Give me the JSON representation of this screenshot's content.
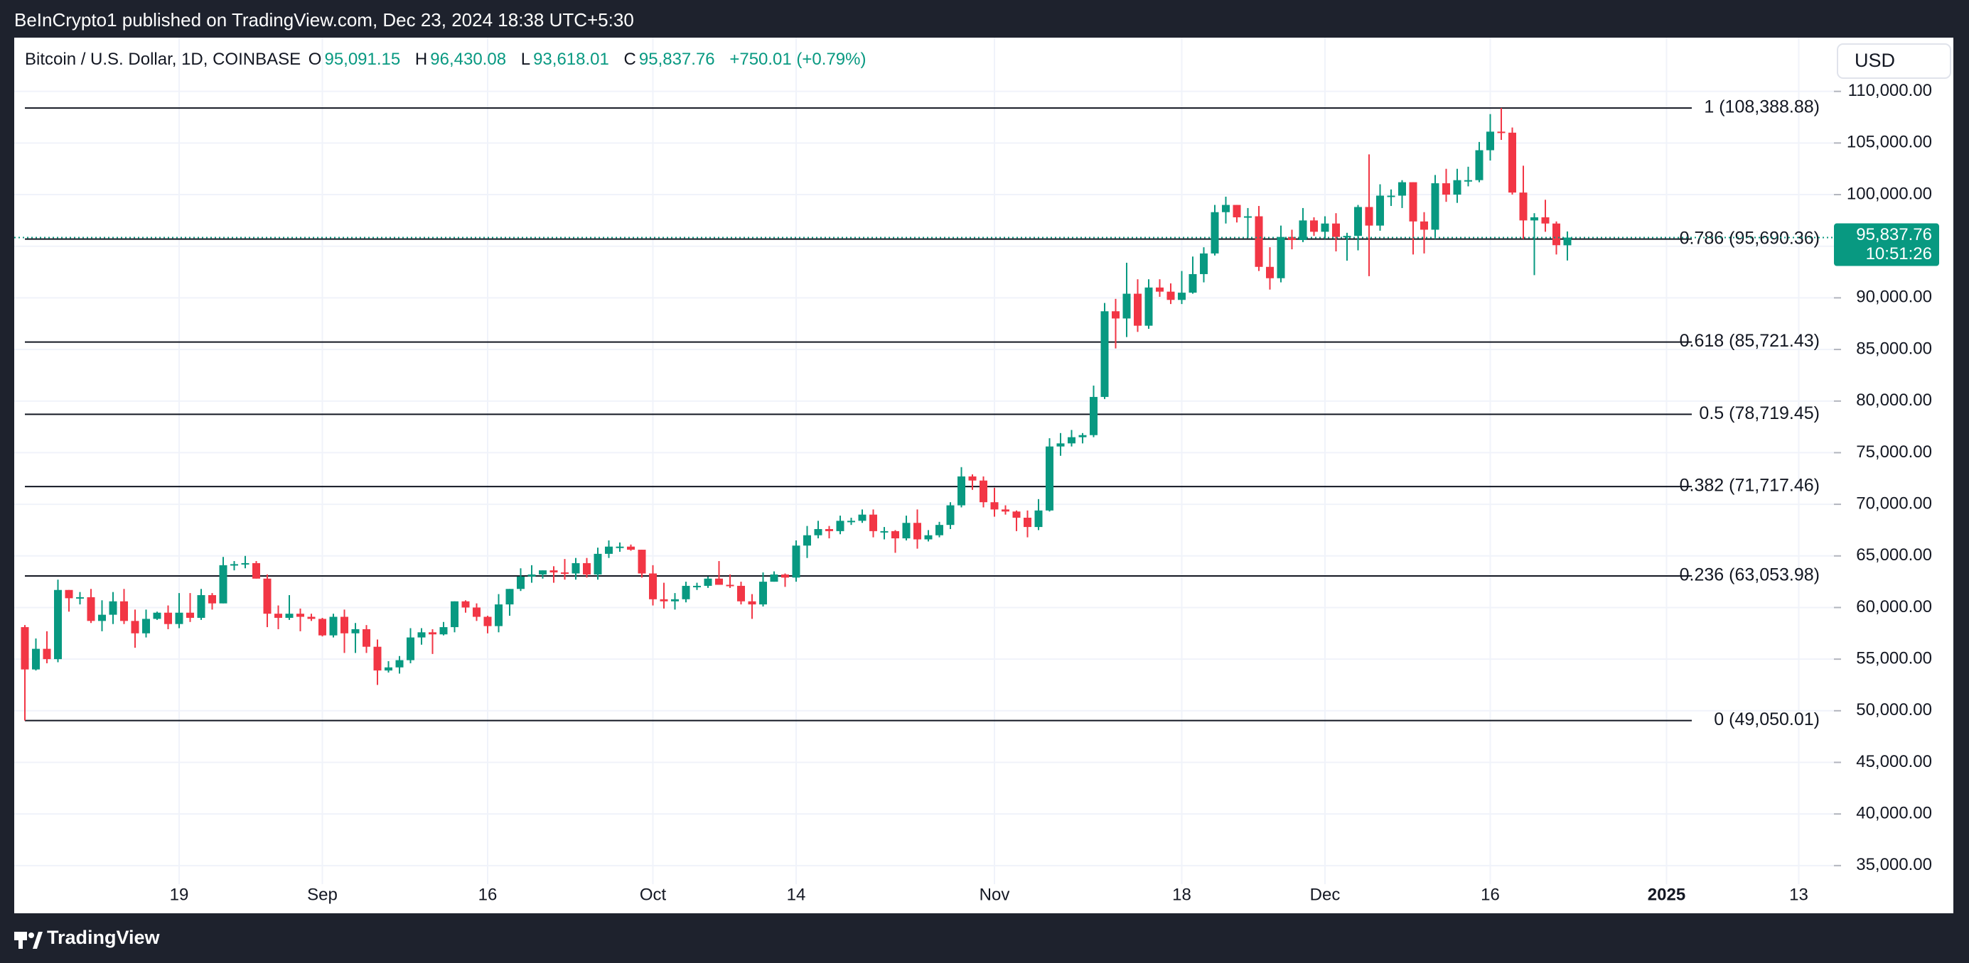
{
  "header": {
    "published": "BeInCrypto1 published on TradingView.com, Dec 23, 2024 18:38 UTC+5:30",
    "symbol": "Bitcoin / U.S. Dollar, 1D, COINBASE",
    "ohlc": [
      {
        "key": "O",
        "value": "95,091.15"
      },
      {
        "key": "H",
        "value": "96,430.08"
      },
      {
        "key": "L",
        "value": "93,618.01"
      },
      {
        "key": "C",
        "value": "95,837.76"
      }
    ],
    "change": "+750.01 (+0.79%)"
  },
  "currency": "USD",
  "footer": {
    "brand": "TradingView"
  },
  "chart_data": {
    "type": "candlestick",
    "up_color": "#089981",
    "down_color": "#f23645",
    "grid": true,
    "price_label": "95,837.76",
    "countdown": "10:51:26",
    "ylim": [
      33200,
      115000
    ],
    "yticks": [
      {
        "value": 35000,
        "label": "35,000.00"
      },
      {
        "value": 40000,
        "label": "40,000.00"
      },
      {
        "value": 45000,
        "label": "45,000.00"
      },
      {
        "value": 50000,
        "label": "50,000.00"
      },
      {
        "value": 55000,
        "label": "55,000.00"
      },
      {
        "value": 60000,
        "label": "60,000.00"
      },
      {
        "value": 65000,
        "label": "65,000.00"
      },
      {
        "value": 70000,
        "label": "70,000.00"
      },
      {
        "value": 75000,
        "label": "75,000.00"
      },
      {
        "value": 80000,
        "label": "80,000.00"
      },
      {
        "value": 85000,
        "label": "85,000.00"
      },
      {
        "value": 90000,
        "label": "90,000.00"
      },
      {
        "value": 95000,
        "label": "95,000.00"
      },
      {
        "value": 100000,
        "label": "100,000.00"
      },
      {
        "value": 105000,
        "label": "105,000.00"
      },
      {
        "value": 110000,
        "label": "110,000.00"
      }
    ],
    "fib_levels": [
      {
        "value": 108388.88,
        "label": "1 (108,388.88)"
      },
      {
        "value": 95690.36,
        "label": "0.786 (95,690.36)"
      },
      {
        "value": 85721.43,
        "label": "0.618 (85,721.43)"
      },
      {
        "value": 78719.45,
        "label": "0.5 (78,719.45)"
      },
      {
        "value": 71717.46,
        "label": "0.382 (71,717.46)"
      },
      {
        "value": 63053.98,
        "label": "0.236 (63,053.98)"
      },
      {
        "value": 49050.01,
        "label": "0 (49,050.01)"
      }
    ],
    "categories": [
      null,
      null,
      null,
      null,
      null,
      null,
      null,
      null,
      null,
      null,
      null,
      null,
      null,
      null,
      "19",
      null,
      null,
      null,
      null,
      null,
      null,
      null,
      null,
      null,
      null,
      null,
      null,
      "Sep",
      null,
      null,
      null,
      null,
      null,
      null,
      null,
      null,
      null,
      null,
      null,
      null,
      null,
      null,
      "16",
      null,
      null,
      null,
      null,
      null,
      null,
      null,
      null,
      null,
      null,
      null,
      null,
      null,
      null,
      "Oct",
      null,
      null,
      null,
      null,
      null,
      null,
      null,
      null,
      null,
      null,
      null,
      null,
      "14",
      null,
      null,
      null,
      null,
      null,
      null,
      null,
      null,
      null,
      null,
      null,
      null,
      null,
      null,
      null,
      null,
      null,
      "Nov",
      null,
      null,
      null,
      null,
      null,
      null,
      null,
      null,
      null,
      null,
      null,
      null,
      null,
      null,
      null,
      null,
      "18",
      null,
      null,
      null,
      null,
      null,
      null,
      null,
      null,
      null,
      null,
      null,
      null,
      "Dec",
      null,
      null,
      null,
      null,
      null,
      null,
      null,
      null,
      null,
      null,
      null,
      null,
      null,
      null,
      "16",
      null,
      null,
      null,
      null,
      null,
      null,
      null,
      null,
      null,
      null,
      null,
      null,
      null,
      null,
      null,
      "2025",
      null,
      null,
      null,
      null,
      null,
      null,
      null,
      null,
      null,
      null,
      null,
      "13",
      null,
      null
    ],
    "candles": [
      [
        58100,
        58300,
        49050,
        54000
      ],
      [
        54000,
        57000,
        53900,
        56000
      ],
      [
        56000,
        57700,
        54600,
        55000
      ],
      [
        55000,
        62700,
        54700,
        61700
      ],
      [
        61700,
        61700,
        59600,
        60900
      ],
      [
        60900,
        61500,
        60300,
        61000
      ],
      [
        61000,
        61800,
        58500,
        58700
      ],
      [
        58700,
        60700,
        57700,
        59300
      ],
      [
        59300,
        61500,
        58400,
        60600
      ],
      [
        60600,
        61800,
        58400,
        58700
      ],
      [
        58700,
        59800,
        56100,
        57500
      ],
      [
        57500,
        59800,
        57100,
        58900
      ],
      [
        58900,
        59600,
        58800,
        59500
      ],
      [
        59500,
        60200,
        57900,
        58400
      ],
      [
        58400,
        61400,
        58000,
        59500
      ],
      [
        59500,
        61400,
        58600,
        59000
      ],
      [
        59000,
        61800,
        58800,
        61200
      ],
      [
        61200,
        61400,
        59800,
        60400
      ],
      [
        60400,
        64900,
        60400,
        64100
      ],
      [
        64100,
        64500,
        63600,
        64200
      ],
      [
        64200,
        65000,
        63800,
        64300
      ],
      [
        64300,
        64500,
        62800,
        62800
      ],
      [
        62800,
        63200,
        58100,
        59400
      ],
      [
        59400,
        60200,
        57900,
        59000
      ],
      [
        59000,
        61200,
        58800,
        59400
      ],
      [
        59400,
        59900,
        57700,
        59100
      ],
      [
        59100,
        59400,
        58700,
        58900
      ],
      [
        58900,
        59000,
        57200,
        57300
      ],
      [
        57300,
        59400,
        57100,
        59100
      ],
      [
        59100,
        59800,
        55600,
        57500
      ],
      [
        57500,
        58500,
        55600,
        57900
      ],
      [
        57900,
        58300,
        55600,
        56200
      ],
      [
        56200,
        56900,
        52500,
        53900
      ],
      [
        53900,
        54800,
        53700,
        54200
      ],
      [
        54200,
        55300,
        53600,
        54900
      ],
      [
        54900,
        58000,
        54600,
        57100
      ],
      [
        57100,
        58000,
        56400,
        57600
      ],
      [
        57600,
        57900,
        55500,
        57400
      ],
      [
        57400,
        58600,
        57300,
        58100
      ],
      [
        58100,
        60600,
        57600,
        60600
      ],
      [
        60600,
        60700,
        59500,
        60000
      ],
      [
        60000,
        60400,
        58700,
        59100
      ],
      [
        59100,
        59200,
        57500,
        58200
      ],
      [
        58200,
        61300,
        57600,
        60300
      ],
      [
        60300,
        61800,
        59200,
        61800
      ],
      [
        61800,
        63800,
        61600,
        63000
      ],
      [
        63000,
        64100,
        62400,
        63200
      ],
      [
        63200,
        63600,
        62800,
        63600
      ],
      [
        63600,
        64000,
        62400,
        63400
      ],
      [
        63400,
        64700,
        62700,
        63300
      ],
      [
        63300,
        64800,
        62700,
        64300
      ],
      [
        64300,
        64800,
        62900,
        63200
      ],
      [
        63200,
        65800,
        62700,
        65200
      ],
      [
        65200,
        66500,
        64800,
        65900
      ],
      [
        65900,
        66300,
        65400,
        65900
      ],
      [
        65900,
        66100,
        65500,
        65600
      ],
      [
        65600,
        65600,
        62900,
        63300
      ],
      [
        63300,
        64100,
        60200,
        60800
      ],
      [
        60800,
        62400,
        59900,
        60600
      ],
      [
        60600,
        61400,
        59800,
        60800
      ],
      [
        60800,
        62500,
        60500,
        62100
      ],
      [
        62100,
        62400,
        61700,
        62100
      ],
      [
        62100,
        63000,
        61900,
        62800
      ],
      [
        62800,
        64500,
        62200,
        62200
      ],
      [
        62200,
        63200,
        61900,
        62100
      ],
      [
        62100,
        62500,
        60300,
        60600
      ],
      [
        60600,
        61300,
        58900,
        60300
      ],
      [
        60300,
        63400,
        60100,
        62500
      ],
      [
        62500,
        63500,
        62500,
        63200
      ],
      [
        63200,
        63300,
        62000,
        62900
      ],
      [
        62900,
        66500,
        62500,
        66000
      ],
      [
        66000,
        67900,
        64800,
        67000
      ],
      [
        67000,
        68400,
        66700,
        67600
      ],
      [
        67600,
        67900,
        66700,
        67400
      ],
      [
        67400,
        68900,
        67100,
        68400
      ],
      [
        68400,
        68700,
        68000,
        68400
      ],
      [
        68400,
        69500,
        68200,
        69000
      ],
      [
        69000,
        69500,
        66800,
        67400
      ],
      [
        67400,
        67800,
        66600,
        67400
      ],
      [
        67400,
        67500,
        65300,
        66700
      ],
      [
        66700,
        68900,
        66500,
        68200
      ],
      [
        68200,
        69500,
        65700,
        66600
      ],
      [
        66600,
        67500,
        66400,
        67000
      ],
      [
        67000,
        68300,
        66800,
        68000
      ],
      [
        68000,
        70200,
        67600,
        69900
      ],
      [
        69900,
        73600,
        69700,
        72700
      ],
      [
        72700,
        72900,
        71400,
        72300
      ],
      [
        72300,
        72700,
        69700,
        70200
      ],
      [
        70200,
        71600,
        68800,
        69500
      ],
      [
        69500,
        69900,
        69000,
        69300
      ],
      [
        69300,
        69400,
        67400,
        68700
      ],
      [
        68700,
        69400,
        66800,
        67800
      ],
      [
        67800,
        70500,
        67500,
        69400
      ],
      [
        69400,
        76400,
        69300,
        75600
      ],
      [
        75600,
        76900,
        74700,
        75900
      ],
      [
        75900,
        77200,
        75600,
        76500
      ],
      [
        76500,
        76900,
        75900,
        76700
      ],
      [
        76700,
        81500,
        76500,
        80400
      ],
      [
        80400,
        89500,
        80200,
        88700
      ],
      [
        88700,
        89900,
        85100,
        88000
      ],
      [
        88000,
        93400,
        86200,
        90400
      ],
      [
        90400,
        91800,
        86700,
        87300
      ],
      [
        87300,
        91800,
        87000,
        91000
      ],
      [
        91000,
        91800,
        90100,
        90600
      ],
      [
        90600,
        91400,
        89400,
        89800
      ],
      [
        89800,
        92600,
        89400,
        90500
      ],
      [
        90500,
        94000,
        90400,
        92300
      ],
      [
        92300,
        94900,
        91500,
        94300
      ],
      [
        94300,
        99000,
        94100,
        98300
      ],
      [
        98300,
        99800,
        97200,
        99000
      ],
      [
        99000,
        99000,
        97300,
        97800
      ],
      [
        97800,
        98700,
        95800,
        97900
      ],
      [
        97900,
        98900,
        92600,
        93000
      ],
      [
        93000,
        94900,
        90800,
        91900
      ],
      [
        91900,
        97000,
        91500,
        95900
      ],
      [
        95900,
        96600,
        94700,
        95600
      ],
      [
        95600,
        98700,
        95400,
        97500
      ],
      [
        97500,
        97800,
        96000,
        96400
      ],
      [
        96400,
        97900,
        95700,
        97200
      ],
      [
        97200,
        98200,
        94500,
        95900
      ],
      [
        95900,
        96300,
        93600,
        96000
      ],
      [
        96000,
        99000,
        94600,
        98800
      ],
      [
        98800,
        103900,
        92100,
        97000
      ],
      [
        97000,
        101000,
        96500,
        99900
      ],
      [
        99900,
        100500,
        98900,
        99900
      ],
      [
        99900,
        101400,
        98700,
        101200
      ],
      [
        101200,
        101200,
        94200,
        97400
      ],
      [
        97400,
        98300,
        94300,
        96600
      ],
      [
        96600,
        101900,
        95700,
        101100
      ],
      [
        101100,
        102500,
        99300,
        100000
      ],
      [
        100000,
        102500,
        99200,
        101400
      ],
      [
        101400,
        102700,
        100800,
        101400
      ],
      [
        101400,
        105100,
        101200,
        104300
      ],
      [
        104300,
        107800,
        103300,
        106100
      ],
      [
        106100,
        108388.88,
        105300,
        106000
      ],
      [
        106000,
        106500,
        100000,
        100200
      ],
      [
        100200,
        102800,
        95700,
        97500
      ],
      [
        97500,
        98200,
        92200,
        97800
      ],
      [
        97800,
        99500,
        96400,
        97200
      ],
      [
        97200,
        97400,
        94200,
        95100
      ],
      [
        95091.15,
        96430.08,
        93618.01,
        95837.76
      ],
      null,
      null,
      null,
      null,
      null,
      null,
      null,
      null,
      null,
      null,
      null,
      null,
      null,
      null,
      null,
      null,
      null,
      null,
      null,
      null,
      null,
      null,
      null
    ]
  }
}
